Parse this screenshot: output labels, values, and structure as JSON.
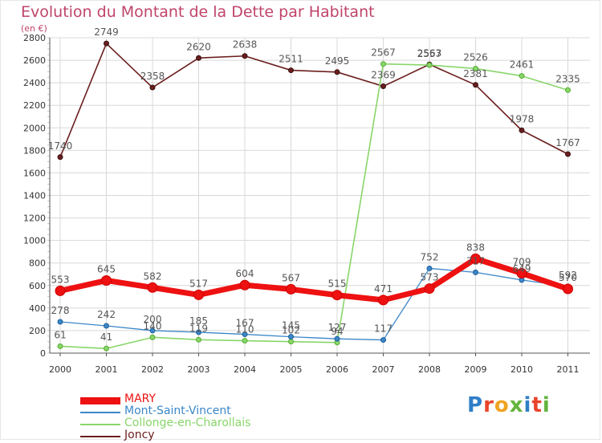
{
  "title": "Evolution du Montant de la Dette par Habitant",
  "subtitle": "(en €)",
  "logo_text": "Proxiti",
  "chart_data": {
    "type": "line",
    "x": [
      "2000",
      "2001",
      "2002",
      "2003",
      "2004",
      "2005",
      "2006",
      "2007",
      "2008",
      "2009",
      "2010",
      "2011"
    ],
    "ylim": [
      0,
      2800
    ],
    "yticks": [
      0,
      200,
      400,
      600,
      800,
      1000,
      1200,
      1400,
      1600,
      1800,
      2000,
      2200,
      2400,
      2600,
      2800
    ],
    "grid": true,
    "legend_position": "bottom-left",
    "series": [
      {
        "name": "MARY",
        "color": "#ee1111",
        "values": [
          553,
          645,
          582,
          517,
          604,
          567,
          515,
          471,
          573,
          838,
          709,
          570
        ],
        "labels": [
          "553",
          "645",
          "582",
          "517",
          "604",
          "567",
          "515",
          "471",
          "573",
          "838",
          "709",
          "570"
        ]
      },
      {
        "name": "Mont-Saint-Vincent",
        "color": "#3b87c8",
        "values": [
          278,
          242,
          200,
          185,
          167,
          145,
          127,
          117,
          752,
          717,
          649,
          592
        ],
        "labels": [
          "278",
          "242",
          "200",
          "185",
          "167",
          "145",
          "127",
          "117",
          "752",
          "717",
          "649",
          "592"
        ]
      },
      {
        "name": "Collonge-en-Charollais",
        "color": "#88d66a",
        "values": [
          61,
          41,
          140,
          119,
          110,
          102,
          94,
          2567,
          2557,
          2526,
          2461,
          2335
        ],
        "labels": [
          "61",
          "41",
          "140",
          "119",
          "110",
          "102",
          "94",
          "2567",
          "2557",
          "2526",
          "2461",
          "2335"
        ]
      },
      {
        "name": "Joncy",
        "color": "#6b1e1e",
        "values": [
          1740,
          2749,
          2358,
          2620,
          2638,
          2511,
          2495,
          2369,
          2563,
          2381,
          1978,
          1767
        ],
        "labels": [
          "1740",
          "2749",
          "2358",
          "2620",
          "2638",
          "2511",
          "2495",
          "2369",
          "2563",
          "2381",
          "1978",
          "1767"
        ]
      }
    ]
  }
}
